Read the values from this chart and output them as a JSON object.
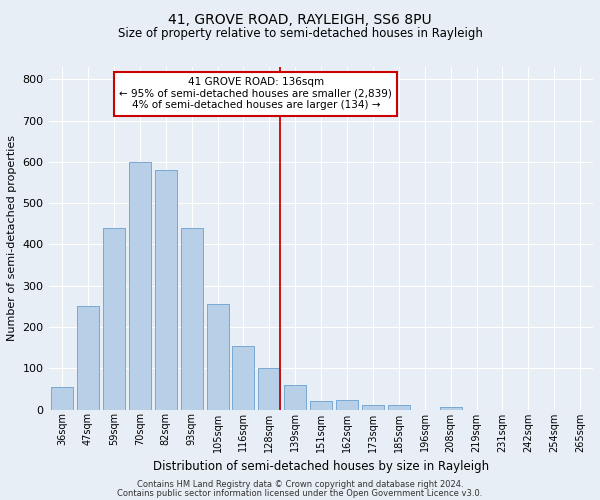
{
  "title": "41, GROVE ROAD, RAYLEIGH, SS6 8PU",
  "subtitle": "Size of property relative to semi-detached houses in Rayleigh",
  "xlabel": "Distribution of semi-detached houses by size in Rayleigh",
  "ylabel": "Number of semi-detached properties",
  "footer_line1": "Contains HM Land Registry data © Crown copyright and database right 2024.",
  "footer_line2": "Contains public sector information licensed under the Open Government Licence v3.0.",
  "categories": [
    "36sqm",
    "47sqm",
    "59sqm",
    "70sqm",
    "82sqm",
    "93sqm",
    "105sqm",
    "116sqm",
    "128sqm",
    "139sqm",
    "151sqm",
    "162sqm",
    "173sqm",
    "185sqm",
    "196sqm",
    "208sqm",
    "219sqm",
    "231sqm",
    "242sqm",
    "254sqm",
    "265sqm"
  ],
  "values": [
    55,
    250,
    440,
    600,
    580,
    440,
    255,
    155,
    100,
    60,
    20,
    22,
    10,
    10,
    0,
    7,
    0,
    0,
    0,
    0,
    0
  ],
  "vline_index": 8,
  "annotation_title": "41 GROVE ROAD: 136sqm",
  "annotation_line2": "← 95% of semi-detached houses are smaller (2,839)",
  "annotation_line3": "4% of semi-detached houses are larger (134) →",
  "bar_color": "#b8cfe8",
  "bar_edge_color": "#6a9fd0",
  "vline_color": "#cc0000",
  "annotation_box_facecolor": "#ffffff",
  "annotation_box_edgecolor": "#cc0000",
  "background_color": "#e8eef5",
  "grid_color": "#ffffff",
  "ylim": [
    0,
    830
  ],
  "yticks": [
    0,
    100,
    200,
    300,
    400,
    500,
    600,
    700,
    800
  ],
  "title_fontsize": 10,
  "subtitle_fontsize": 8.5,
  "ylabel_fontsize": 8,
  "xlabel_fontsize": 8.5,
  "tick_fontsize": 7,
  "annotation_fontsize": 7.5,
  "footer_fontsize": 6
}
